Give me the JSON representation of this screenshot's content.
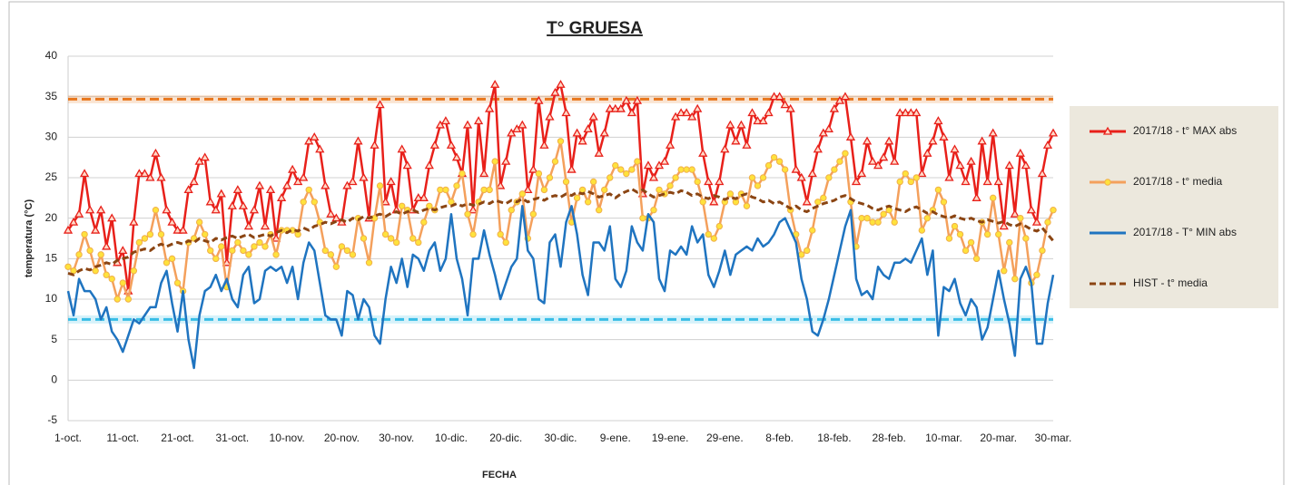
{
  "chart_data": {
    "type": "line",
    "title": "T° GRUESA",
    "x_label": "FECHA",
    "y_label": "temperatura (°C)",
    "categories": [
      "1-oct.",
      null,
      null,
      null,
      null,
      null,
      null,
      null,
      null,
      null,
      "11-oct.",
      null,
      null,
      null,
      null,
      null,
      null,
      null,
      null,
      null,
      "21-oct.",
      null,
      null,
      null,
      null,
      null,
      null,
      null,
      null,
      null,
      "31-oct.",
      null,
      null,
      null,
      null,
      null,
      null,
      null,
      null,
      null,
      "10-nov.",
      null,
      null,
      null,
      null,
      null,
      null,
      null,
      null,
      null,
      "20-nov.",
      null,
      null,
      null,
      null,
      null,
      null,
      null,
      null,
      null,
      "30-nov.",
      null,
      null,
      null,
      null,
      null,
      null,
      null,
      null,
      null,
      "10-dic.",
      null,
      null,
      null,
      null,
      null,
      null,
      null,
      null,
      null,
      "20-dic.",
      null,
      null,
      null,
      null,
      null,
      null,
      null,
      null,
      null,
      "30-dic.",
      null,
      null,
      null,
      null,
      null,
      null,
      null,
      null,
      null,
      "9-ene.",
      null,
      null,
      null,
      null,
      null,
      null,
      null,
      null,
      null,
      "19-ene.",
      null,
      null,
      null,
      null,
      null,
      null,
      null,
      null,
      null,
      "29-ene.",
      null,
      null,
      null,
      null,
      null,
      null,
      null,
      null,
      null,
      "8-feb.",
      null,
      null,
      null,
      null,
      null,
      null,
      null,
      null,
      null,
      "18-feb.",
      null,
      null,
      null,
      null,
      null,
      null,
      null,
      null,
      null,
      "28-feb.",
      null,
      null,
      null,
      null,
      null,
      null,
      null,
      null,
      null,
      "10-mar.",
      null,
      null,
      null,
      null,
      null,
      null,
      null,
      null,
      null,
      "20-mar.",
      null,
      null,
      null,
      null,
      null,
      null,
      null,
      null,
      null,
      "30-mar."
    ],
    "ylim": [
      -5,
      40
    ],
    "yticks": [
      -5,
      0,
      5,
      10,
      15,
      20,
      25,
      30,
      35,
      40
    ],
    "hlines": [
      {
        "value": 34.7,
        "color": "#e8761c"
      },
      {
        "value": 7.5,
        "color": "#38bde6"
      }
    ],
    "series": [
      {
        "name": "2017/18 - t° MAX abs",
        "color": "#e8201a",
        "marker": "triangle",
        "values": [
          18.5,
          19.5,
          20.5,
          25.5,
          21,
          18.5,
          21,
          16.5,
          20,
          14.5,
          16,
          11,
          19.5,
          25.5,
          25.5,
          25,
          28,
          25,
          21,
          19.5,
          18.5,
          18.5,
          23.5,
          24.5,
          27,
          27.5,
          22,
          21,
          23,
          14.5,
          21.5,
          23.5,
          21.5,
          19,
          21,
          24,
          19,
          23.5,
          17.5,
          22.5,
          24,
          26,
          24.5,
          25,
          29.5,
          30,
          28.5,
          24,
          20.5,
          20,
          19.5,
          24,
          24.5,
          29.5,
          25,
          20,
          29,
          34,
          22,
          24.5,
          21,
          28.5,
          26.5,
          21,
          22.5,
          22.5,
          26.5,
          29,
          31.5,
          32,
          29,
          27.5,
          25.5,
          31.5,
          21,
          32,
          25.5,
          33.5,
          36.5,
          24,
          27,
          30.5,
          31,
          31.5,
          23.5,
          26,
          34.5,
          29,
          32.5,
          35.5,
          36.5,
          33,
          26,
          30.5,
          29.5,
          31,
          32.5,
          28,
          30.5,
          33.5,
          33.5,
          33.5,
          34.5,
          33,
          34.5,
          23,
          26.5,
          25,
          26.5,
          27,
          29,
          32.5,
          33,
          33,
          32.5,
          33.5,
          28,
          24.5,
          22,
          24.5,
          28.5,
          31.5,
          29.5,
          31.5,
          29,
          33,
          32,
          32,
          33,
          35,
          35,
          34,
          33.5,
          26,
          25,
          22,
          25.5,
          28.5,
          30.5,
          31,
          33.5,
          34.5,
          35,
          30,
          24.5,
          25.5,
          29.5,
          27,
          26.5,
          27.5,
          29.5,
          27,
          33,
          33,
          33,
          33,
          25.5,
          28,
          29.5,
          32,
          30,
          25,
          28.5,
          26.5,
          24.5,
          27,
          22.5,
          29.5,
          24.5,
          30.5,
          24.5,
          19,
          26.5,
          20.5,
          28,
          26.5,
          21,
          19.5,
          25.5,
          29,
          30.5
        ]
      },
      {
        "name": "2017/18 - t° media",
        "color": "#f4a05c",
        "marker": "circle",
        "values": [
          14,
          13.5,
          15.5,
          18,
          16,
          13.5,
          15.5,
          13,
          12.5,
          10,
          12,
          10,
          13.5,
          17,
          17.5,
          18,
          21,
          18,
          14.5,
          15,
          12,
          11,
          17,
          17.5,
          19.5,
          18,
          16,
          15,
          16.5,
          11.5,
          16,
          17,
          16,
          15.5,
          16.5,
          17,
          16.5,
          18,
          15.5,
          18.5,
          18.5,
          18.5,
          18,
          22,
          23.5,
          22,
          19.5,
          16,
          15.5,
          14,
          16.5,
          16,
          15.5,
          20,
          17.5,
          14.5,
          20,
          24,
          18,
          17.5,
          17,
          21.5,
          21,
          17.5,
          17,
          19.5,
          21.5,
          21,
          23.5,
          23.5,
          22,
          24,
          25.5,
          20.5,
          18,
          22,
          23.5,
          23.5,
          27,
          18,
          17,
          21,
          22,
          23,
          17.5,
          20.5,
          25.5,
          23.5,
          25,
          27,
          29.5,
          24.5,
          19.5,
          22.5,
          23.5,
          22,
          24.5,
          21,
          23.5,
          25,
          26.5,
          26,
          25.5,
          26,
          27,
          20,
          20,
          21,
          23.5,
          23,
          24,
          25,
          26,
          26,
          26,
          24.5,
          22,
          18,
          17.5,
          19,
          22,
          23,
          22,
          23,
          21.5,
          25,
          24,
          25,
          26.5,
          27.5,
          27,
          26,
          21,
          18,
          15.5,
          16,
          18.5,
          22,
          22.5,
          25,
          26,
          27,
          28,
          22,
          16.5,
          20,
          20,
          19.5,
          19.5,
          20.5,
          21,
          19.5,
          24.5,
          25.5,
          24.5,
          25,
          18.5,
          20,
          21,
          23.5,
          22,
          17.5,
          19,
          18,
          16,
          17,
          15,
          19.5,
          18,
          22.5,
          18,
          13.5,
          17,
          12.5,
          20,
          17.5,
          12,
          13,
          16,
          19.5,
          21
        ]
      },
      {
        "name": "2017/18 - T° MIN abs",
        "color": "#1f74c0",
        "values": [
          11,
          8,
          12.5,
          11,
          11,
          10,
          7.5,
          9,
          6,
          5,
          3.5,
          5.5,
          7.5,
          7,
          8,
          9,
          9,
          12,
          13.5,
          9.5,
          6,
          11,
          5,
          1.5,
          8,
          11,
          11.5,
          13,
          11,
          12.5,
          10,
          9,
          13,
          14,
          9.5,
          10,
          13.5,
          14,
          13.5,
          14,
          12,
          14,
          10,
          14.5,
          17,
          16,
          12,
          8,
          7.5,
          7.5,
          5.5,
          11,
          10.5,
          7.5,
          10,
          9,
          5.5,
          4.5,
          10,
          14,
          12,
          15,
          11.5,
          15.5,
          15,
          13.5,
          16,
          17,
          13.5,
          15,
          20.5,
          15,
          12.5,
          8,
          15,
          15,
          18.5,
          15.5,
          13,
          10,
          12,
          14,
          15,
          21.5,
          16,
          15,
          10,
          9.5,
          17,
          18,
          14,
          19.5,
          21.5,
          18,
          13,
          10.5,
          17,
          17,
          16,
          19,
          12.5,
          11.5,
          13.5,
          19,
          17,
          16,
          20.5,
          19.5,
          12.5,
          11,
          16,
          15.5,
          16.5,
          15.5,
          19,
          17,
          18,
          13,
          11.5,
          13.5,
          16,
          13,
          15.5,
          16,
          16.5,
          16,
          17.5,
          16.5,
          17,
          18,
          19.5,
          20,
          18.5,
          17,
          12.5,
          10,
          6,
          5.5,
          7.5,
          10,
          13,
          16,
          19,
          21,
          12.5,
          10.5,
          11,
          10,
          14,
          13,
          12.5,
          14.5,
          14.5,
          15,
          14.5,
          16,
          17.5,
          13,
          16,
          5.5,
          11.5,
          11,
          12.5,
          9.5,
          8,
          10,
          9,
          5,
          6.5,
          10,
          13.5,
          10,
          7,
          3,
          12.5,
          14,
          12,
          4.5,
          4.5,
          9.5,
          13
        ]
      },
      {
        "name": "HIST - t° media",
        "color": "#8b4513",
        "dash": true,
        "values": [
          13.2,
          13,
          13.5,
          13.8,
          13.6,
          14,
          14.2,
          14.5,
          14.3,
          14.8,
          15,
          15.2,
          15.8,
          16,
          16.2,
          16,
          16.5,
          16.8,
          16.5,
          16.8,
          17,
          16.8,
          17.2,
          17,
          17.5,
          17.2,
          17,
          17.5,
          17.3,
          17.6,
          17.8,
          17.5,
          17.8,
          18,
          17.6,
          17.8,
          18,
          17.8,
          18.2,
          18.5,
          18.2,
          18.6,
          18.4,
          18.8,
          18.5,
          19,
          19.2,
          19.5,
          19.3,
          19.6,
          19.8,
          19.5,
          20,
          19.8,
          20.2,
          20,
          20.3,
          20.5,
          20.2,
          20.6,
          20.8,
          20.5,
          20.8,
          21,
          20.7,
          21,
          21.2,
          21,
          21.3,
          21.5,
          21.5,
          21.8,
          21.5,
          21.8,
          21.6,
          21.7,
          22,
          21.8,
          22.2,
          22,
          21.8,
          22.2,
          22,
          22.4,
          22,
          22.3,
          22.5,
          22.2,
          22.6,
          22.8,
          22.6,
          23,
          22.8,
          23.2,
          23,
          23.3,
          23,
          22.6,
          22.8,
          23,
          22.5,
          23,
          23.3,
          23.6,
          23.2,
          23.5,
          23,
          22.6,
          22.8,
          23,
          23.2,
          23,
          23.4,
          23.2,
          22.8,
          23,
          22.6,
          22.4,
          22.8,
          22.6,
          22.3,
          22.6,
          22.4,
          22.8,
          23,
          22.6,
          22.4,
          22,
          22.2,
          21.8,
          22,
          21.6,
          21.2,
          21.5,
          21,
          20.8,
          21.2,
          21.5,
          21.8,
          22,
          22.2,
          22.6,
          22.8,
          22.4,
          22,
          21.8,
          21.6,
          21.2,
          21,
          21.3,
          21.5,
          21.2,
          21,
          20.8,
          21.2,
          21.4,
          21,
          20.6,
          20.8,
          20.4,
          20.2,
          20,
          20.3,
          20,
          19.8,
          20,
          19.7,
          19.5,
          19.8,
          19.6,
          19.4,
          19.6,
          19.2,
          19,
          19.3,
          19,
          18.6,
          18.4,
          18.8,
          18,
          17.2
        ]
      }
    ]
  }
}
